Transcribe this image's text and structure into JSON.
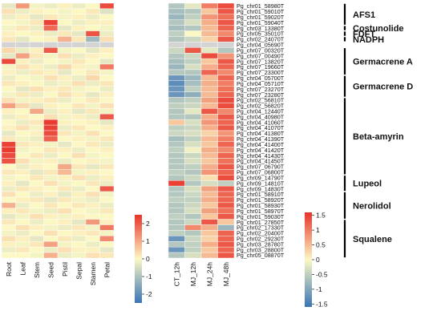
{
  "chart_data": {
    "type": "heatmap",
    "colors": {
      "low": "#3a74b6",
      "mid": "#fcf8c4",
      "high": "#e8332a",
      "missing": "#d4d4d4"
    },
    "genes": [
      "Pg_chr01_58980T",
      "Pg_chr01_59010T",
      "Pg_chr01_59020T",
      "Pg_chr01_59040T",
      "Pg_chr03_13380T",
      "Pg_chr05_35010T",
      "Pg_chr02_24070T",
      "Pg_chr04_05690T",
      "Pg_chr07_00320T",
      "Pg_chr07_00490T",
      "Pg_chr07_13820T",
      "Pg_chr07_19660T",
      "Pg_chr07_23300T",
      "Pg_chr04_05700T",
      "Pg_chr04_05710T",
      "Pg_chr07_23270T",
      "Pg_chr07_23280T",
      "Pg_chr02_56810T",
      "Pg_chr02_56820T",
      "Pg_chr04_12440T",
      "Pg_chr04_40980T",
      "Pg_chr04_41060T",
      "Pg_chr04_41070T",
      "Pg_chr04_41380T",
      "Pg_chr04_41390T",
      "Pg_chr04_41400T",
      "Pg_chr04_41420T",
      "Pg_chr04_41430T",
      "Pg_chr04_41450T",
      "Pg_chr07_06790T",
      "Pg_chr07_06800T",
      "Pg_chr09_14790T",
      "Pg_chr09_14810T",
      "Pg_chr09_14830T",
      "Pg_chr01_58910T",
      "Pg_chr01_58920T",
      "Pg_chr01_58930T",
      "Pg_chr01_58970T",
      "Pg_chr01_59030T",
      "Pg_chr01_27850T",
      "Pg_chr02_17330T",
      "Pg_chr02_20400T",
      "Pg_chr02_29230T",
      "Pg_chr03_28780T",
      "Pg_chr03_28800T",
      "Pg_chr05_08870T"
    ],
    "left": {
      "columns": [
        "Root",
        "Leaf",
        "Stem",
        "Seed",
        "Pistil",
        "Sepal",
        "Stamen",
        "Petal"
      ],
      "colorbar": {
        "ticks": [
          2,
          1,
          0,
          -1,
          -2
        ],
        "min": -2.5,
        "max": 2.5
      },
      "values": [
        [
          -0.3,
          1.2,
          -0.1,
          -0.2,
          0.1,
          -0.2,
          0.0,
          2.2
        ],
        [
          0.3,
          -0.2,
          0.1,
          0.0,
          -0.1,
          0.0,
          0.2,
          -0.4
        ],
        [
          -0.2,
          0.1,
          -0.3,
          0.2,
          -0.1,
          0.1,
          -0.2,
          0.0
        ],
        [
          0.0,
          -0.1,
          0.2,
          2.3,
          0.0,
          -0.2,
          0.1,
          0.1
        ],
        [
          -0.1,
          0.2,
          -0.2,
          1.8,
          -0.3,
          0.1,
          0.0,
          -0.1
        ],
        [
          0.1,
          0.0,
          0.1,
          -0.2,
          0.2,
          -0.3,
          2.1,
          -0.2
        ],
        [
          0.2,
          -0.3,
          0.0,
          0.1,
          0.9,
          0.2,
          -1.2,
          0.3
        ],
        [
          null,
          null,
          null,
          null,
          null,
          null,
          null,
          null
        ],
        [
          0.4,
          -0.2,
          0.1,
          2.0,
          -0.1,
          0.0,
          -0.3,
          0.1
        ],
        [
          -0.3,
          1.1,
          0.2,
          -0.1,
          0.3,
          -0.2,
          0.1,
          0.0
        ],
        [
          2.2,
          0.1,
          -0.2,
          0.0,
          -0.1,
          0.2,
          0.0,
          -0.3
        ],
        [
          -0.1,
          0.3,
          0.1,
          -0.2,
          0.4,
          0.1,
          -0.1,
          1.6
        ],
        [
          0.1,
          -0.2,
          0.2,
          0.1,
          -0.3,
          0.0,
          0.2,
          -0.1
        ],
        [
          -0.2,
          0.0,
          -0.1,
          0.3,
          0.1,
          -0.2,
          0.4,
          0.0
        ],
        [
          0.2,
          0.1,
          0.0,
          -0.2,
          -0.1,
          0.3,
          -0.2,
          0.2
        ],
        [
          0.0,
          -0.3,
          0.3,
          0.1,
          0.2,
          -0.1,
          0.0,
          -0.2
        ],
        [
          -0.1,
          0.2,
          -0.2,
          0.0,
          0.3,
          0.1,
          -0.3,
          0.1
        ],
        [
          0.3,
          -0.1,
          0.1,
          0.2,
          -0.2,
          0.0,
          0.2,
          0.0
        ],
        [
          1.1,
          0.4,
          -0.3,
          0.1,
          0.0,
          0.2,
          -0.1,
          0.3
        ],
        [
          0.1,
          0.0,
          1.0,
          -0.2,
          0.1,
          -0.3,
          0.2,
          -0.1
        ],
        [
          -0.2,
          0.1,
          0.0,
          0.3,
          -0.1,
          0.1,
          -0.2,
          2.0
        ],
        [
          0.0,
          -0.2,
          0.2,
          2.4,
          0.1,
          0.0,
          0.1,
          -0.3
        ],
        [
          0.1,
          0.3,
          -0.1,
          2.3,
          -0.2,
          0.2,
          0.0,
          0.1
        ],
        [
          -0.3,
          0.0,
          0.1,
          2.2,
          0.2,
          -0.1,
          0.3,
          0.0
        ],
        [
          0.2,
          -0.1,
          -0.2,
          1.9,
          0.0,
          0.1,
          -0.1,
          0.2
        ],
        [
          2.3,
          0.2,
          0.1,
          -0.1,
          -0.3,
          0.0,
          0.2,
          -0.2
        ],
        [
          2.4,
          -0.1,
          0.0,
          0.2,
          0.1,
          -0.2,
          0.0,
          0.1
        ],
        [
          2.2,
          0.0,
          0.2,
          -0.2,
          0.0,
          0.3,
          -0.1,
          0.0
        ],
        [
          2.1,
          0.3,
          -0.1,
          0.1,
          -0.2,
          0.0,
          0.1,
          -0.1
        ],
        [
          0.0,
          -0.2,
          0.1,
          0.0,
          1.0,
          0.2,
          -0.3,
          0.2
        ],
        [
          0.2,
          0.1,
          -0.3,
          0.2,
          0.8,
          -0.1,
          0.1,
          0.0
        ],
        [
          -0.1,
          0.0,
          0.2,
          -0.1,
          0.1,
          0.3,
          -0.2,
          0.1
        ],
        [
          0.1,
          -0.3,
          0.0,
          0.3,
          -0.1,
          0.0,
          0.2,
          -0.2
        ],
        [
          -0.2,
          0.2,
          0.1,
          0.0,
          0.2,
          -0.2,
          0.0,
          2.0
        ],
        [
          0.3,
          0.0,
          -0.2,
          0.1,
          -0.3,
          0.1,
          0.3,
          -0.1
        ],
        [
          0.0,
          0.1,
          0.2,
          -0.3,
          0.2,
          -0.1,
          -0.2,
          0.0
        ],
        [
          0.9,
          -0.2,
          0.0,
          0.2,
          0.0,
          0.2,
          0.1,
          -0.2
        ],
        [
          0.1,
          0.2,
          -0.1,
          -0.2,
          0.3,
          0.0,
          -0.1,
          0.2
        ],
        [
          -0.3,
          -0.1,
          0.3,
          0.1,
          -0.1,
          0.1,
          0.0,
          0.0
        ],
        [
          0.2,
          0.0,
          -0.2,
          0.0,
          0.1,
          -0.3,
          1.2,
          0.1
        ],
        [
          0.0,
          0.3,
          0.1,
          -0.1,
          -0.2,
          0.2,
          -0.1,
          1.6
        ],
        [
          -0.1,
          -0.2,
          0.0,
          0.3,
          0.0,
          0.1,
          0.2,
          -0.1
        ],
        [
          0.3,
          0.1,
          -0.3,
          0.0,
          0.2,
          -0.2,
          0.0,
          1.4
        ],
        [
          0.1,
          -0.1,
          0.2,
          1.1,
          -0.1,
          0.0,
          -0.2,
          0.0
        ],
        [
          -0.2,
          0.2,
          0.0,
          -0.2,
          0.3,
          0.1,
          0.1,
          -0.3
        ],
        [
          0.0,
          0.0,
          -0.1,
          0.9,
          -0.2,
          -0.1,
          0.3,
          0.2
        ]
      ]
    },
    "right": {
      "columns": [
        "CT_12h",
        "MJ_12h",
        "MJ_24h",
        "MJ_48h"
      ],
      "colorbar": {
        "ticks": [
          1.5,
          1,
          0.5,
          0,
          -0.5,
          -1,
          -1.5
        ],
        "min": -1.6,
        "max": 1.6
      },
      "values": [
        [
          -0.6,
          -0.2,
          1.0,
          1.4
        ],
        [
          -0.7,
          -0.6,
          0.4,
          1.3
        ],
        [
          -0.8,
          -0.5,
          0.8,
          1.1
        ],
        [
          -0.6,
          -0.3,
          0.6,
          1.3
        ],
        [
          -0.7,
          -0.6,
          0.5,
          1.2
        ],
        [
          -0.5,
          0.0,
          0.5,
          0.9
        ],
        [
          -0.6,
          -0.4,
          0.3,
          1.3
        ],
        [
          null,
          null,
          null,
          null
        ],
        [
          -0.4,
          1.3,
          -0.2,
          -0.6
        ],
        [
          -0.6,
          -0.4,
          1.4,
          0.8
        ],
        [
          -0.7,
          -0.5,
          0.4,
          1.3
        ],
        [
          -0.8,
          -0.3,
          0.6,
          1.2
        ],
        [
          -0.6,
          -0.6,
          1.2,
          0.9
        ],
        [
          -1.2,
          -0.8,
          0.5,
          1.2
        ],
        [
          -1.3,
          -0.7,
          0.6,
          1.0
        ],
        [
          -1.2,
          -0.5,
          0.5,
          1.1
        ],
        [
          -1.2,
          -0.9,
          0.5,
          1.2
        ],
        [
          -0.6,
          -0.5,
          0.7,
          1.4
        ],
        [
          -0.5,
          -0.4,
          0.5,
          1.4
        ],
        [
          -0.6,
          -0.2,
          1.3,
          0.9
        ],
        [
          -0.6,
          -0.6,
          0.6,
          1.3
        ],
        [
          0.4,
          -0.3,
          0.8,
          1.2
        ],
        [
          -0.5,
          -0.4,
          0.6,
          1.3
        ],
        [
          -0.4,
          -0.3,
          0.3,
          0.8
        ],
        [
          -0.7,
          -0.5,
          0.5,
          1.0
        ],
        [
          -0.6,
          -0.3,
          0.4,
          1.2
        ],
        [
          -0.5,
          -0.1,
          0.6,
          0.9
        ],
        [
          -0.6,
          -0.4,
          0.5,
          1.2
        ],
        [
          -0.6,
          -0.3,
          0.4,
          1.1
        ],
        [
          -0.6,
          -0.5,
          0.6,
          1.3
        ],
        [
          -0.5,
          -0.6,
          0.8,
          1.2
        ],
        [
          -0.6,
          -0.4,
          0.2,
          1.4
        ],
        [
          1.5,
          -0.6,
          -0.3,
          -0.5
        ],
        [
          -0.6,
          -0.3,
          0.7,
          1.3
        ],
        [
          -0.6,
          -0.4,
          0.5,
          1.2
        ],
        [
          -0.5,
          -0.5,
          0.6,
          1.2
        ],
        [
          -0.6,
          -0.4,
          0.4,
          1.3
        ],
        [
          -0.6,
          -0.3,
          0.7,
          1.1
        ],
        [
          -0.5,
          -0.6,
          0.4,
          1.3
        ],
        [
          -0.6,
          -0.4,
          1.3,
          0.4
        ],
        [
          -0.6,
          0.9,
          0.6,
          -0.8
        ],
        [
          -0.5,
          -0.6,
          0.4,
          1.2
        ],
        [
          -1.2,
          -0.4,
          0.3,
          1.2
        ],
        [
          -0.6,
          -0.5,
          0.6,
          1.3
        ],
        [
          -1.2,
          -0.5,
          0.4,
          1.2
        ],
        [
          -0.6,
          -0.3,
          0.5,
          1.3
        ]
      ]
    },
    "groups": [
      {
        "label": "AFS1",
        "start": 0,
        "end": 3
      },
      {
        "label": "Costunolide",
        "start": 4,
        "end": 4
      },
      {
        "label": "FDFT",
        "start": 5,
        "end": 5
      },
      {
        "label": "NADPH",
        "start": 6,
        "end": 6
      },
      {
        "label": "Germacrene A",
        "start": 8,
        "end": 12
      },
      {
        "label": "Germacrene D",
        "start": 13,
        "end": 16
      },
      {
        "label": "Beta-amyrin",
        "start": 17,
        "end": 30
      },
      {
        "label": "Lupeol",
        "start": 31,
        "end": 33
      },
      {
        "label": "Nerolidol",
        "start": 34,
        "end": 38
      },
      {
        "label": "Squalene",
        "start": 39,
        "end": 45
      }
    ]
  }
}
